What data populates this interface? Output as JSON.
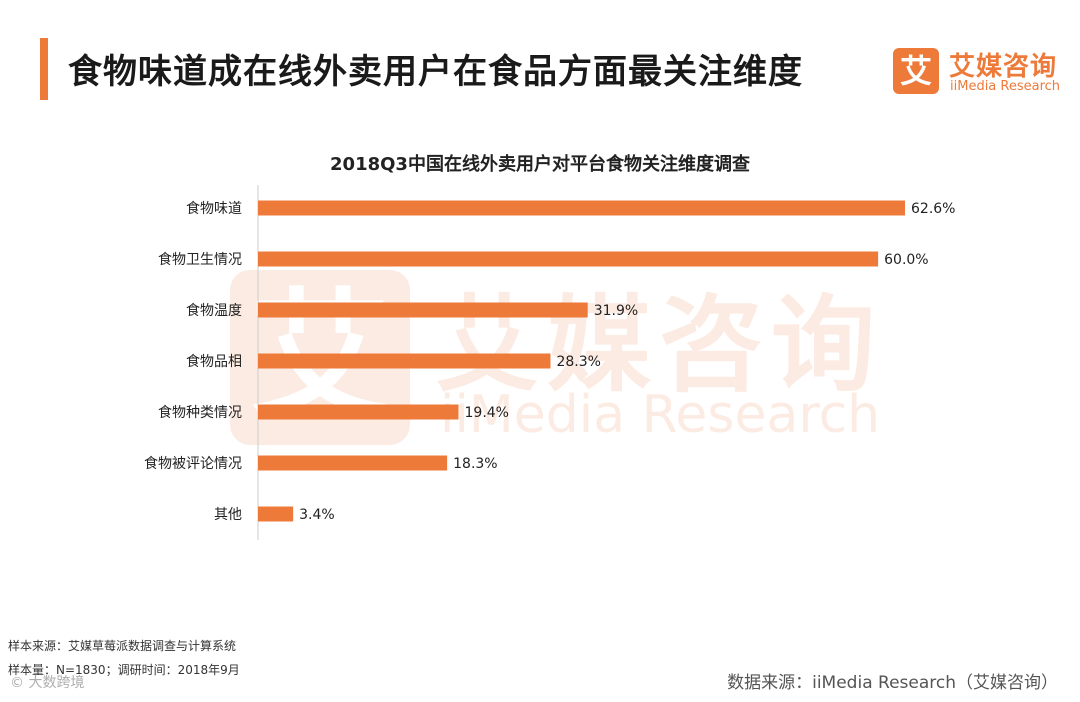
{
  "header": {
    "title": "食物味道成在线外卖用户在食品方面最关注维度",
    "accent_color": "#ee7a3a"
  },
  "logo": {
    "mark": "艾",
    "name_cn": "艾媒咨询",
    "name_en": "iiMedia Research"
  },
  "watermark": {
    "mark": "艾",
    "name_cn": "艾媒咨询",
    "name_en": "iiMedia Research"
  },
  "chart_data": {
    "type": "bar",
    "orientation": "horizontal",
    "title": "2018Q3中国在线外卖用户对平台食物关注维度调查",
    "categories": [
      "食物味道",
      "食物卫生情况",
      "食物温度",
      "食物品相",
      "食物种类情况",
      "食物被评论情况",
      "其他"
    ],
    "values": [
      62.6,
      60.0,
      31.9,
      28.3,
      19.4,
      18.3,
      3.4
    ],
    "value_labels": [
      "62.6%",
      "60.0%",
      "31.9%",
      "28.3%",
      "19.4%",
      "18.3%",
      "3.4%"
    ],
    "unit": "%",
    "bar_color": "#ee7a3a",
    "grid": false,
    "legend": "none"
  },
  "footer": {
    "source_method": "样本来源：艾媒草莓派数据调查与计算系统",
    "sample_info": "样本量：N=1830；调研时间：2018年9月",
    "data_source": "数据来源：iiMedia Research（艾媒咨询）",
    "corner_mark": "© 大数跨境"
  }
}
